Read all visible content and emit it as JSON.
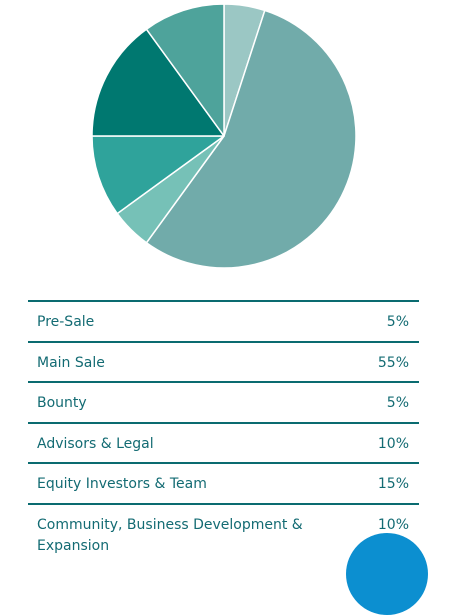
{
  "chart_data": {
    "type": "pie",
    "title": "",
    "slices": [
      {
        "label": "Pre-Sale",
        "value": 5,
        "color": "#9bc7c4"
      },
      {
        "label": "Main Sale",
        "value": 55,
        "color": "#71abaa"
      },
      {
        "label": "Bounty",
        "value": 5,
        "color": "#76c1b7"
      },
      {
        "label": "Advisors & Legal",
        "value": 10,
        "color": "#2fa39b"
      },
      {
        "label": "Equity Investors & Team",
        "value": 15,
        "color": "#007870"
      },
      {
        "label": "Community, Business Development & Expansion",
        "value": 10,
        "color": "#4ea39b"
      }
    ]
  },
  "allocation_table": {
    "rows": [
      {
        "label": "Pre-Sale",
        "value": "5%"
      },
      {
        "label": "Main Sale",
        "value": "55%"
      },
      {
        "label": "Bounty",
        "value": "5%"
      },
      {
        "label": "Advisors & Legal",
        "value": "10%"
      },
      {
        "label": "Equity Investors & Team",
        "value": "15%"
      },
      {
        "label": "Community, Business Development & Expansion",
        "value": "10%"
      }
    ]
  },
  "colors": {
    "table_text": "#136b73",
    "table_border": "#0a6b70",
    "chat_bubble": "#0c8fd0"
  },
  "icons": {
    "chat_bubble": "chat-bubble-icon"
  }
}
